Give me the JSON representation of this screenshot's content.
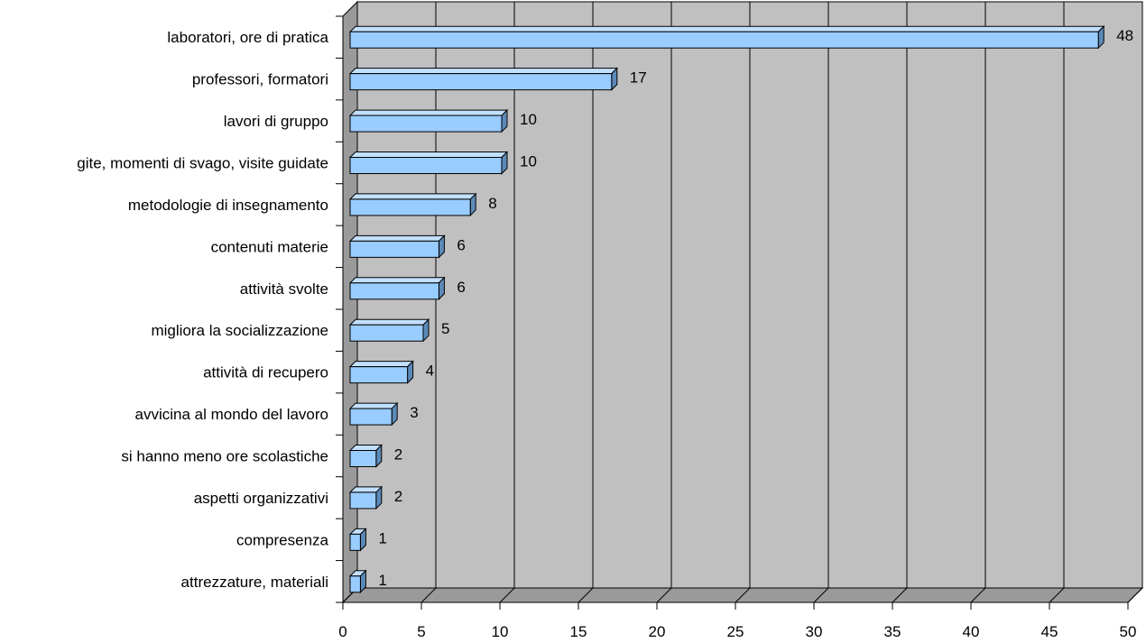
{
  "chart_data": {
    "type": "bar",
    "orientation": "horizontal",
    "style": "3d",
    "categories": [
      "laboratori, ore di pratica",
      "professori, formatori",
      "lavori di gruppo",
      "gite, momenti di svago, visite guidate",
      "metodologie di insegnamento",
      "contenuti materie",
      "attività svolte",
      "migliora la socializzazione",
      "attività di recupero",
      "avvicina al mondo del lavoro",
      "si hanno meno ore scolastiche",
      "aspetti organizzativi",
      "compresenza",
      "attrezzature, materiali"
    ],
    "values": [
      48,
      17,
      10,
      10,
      8,
      6,
      6,
      5,
      4,
      3,
      2,
      2,
      1,
      1
    ],
    "value_labels": [
      "48",
      "17",
      "10",
      "10",
      "8",
      "6",
      "6",
      "5",
      "4",
      "3",
      "2",
      "2",
      "1",
      "1"
    ],
    "xlim": [
      0,
      50
    ],
    "x_ticks": [
      "0",
      "5",
      "10",
      "15",
      "20",
      "25",
      "30",
      "35",
      "40",
      "45",
      "50"
    ],
    "title": "",
    "xlabel": "",
    "ylabel": "",
    "grid": true,
    "legend": "none",
    "colors": {
      "bar_front": "#99ccff",
      "bar_top": "#c2e0ff",
      "bar_side": "#5c8ab8",
      "plot_wall": "#c0c0c0",
      "plot_floor": "#9a9a9a",
      "gridline": "#000000"
    }
  }
}
